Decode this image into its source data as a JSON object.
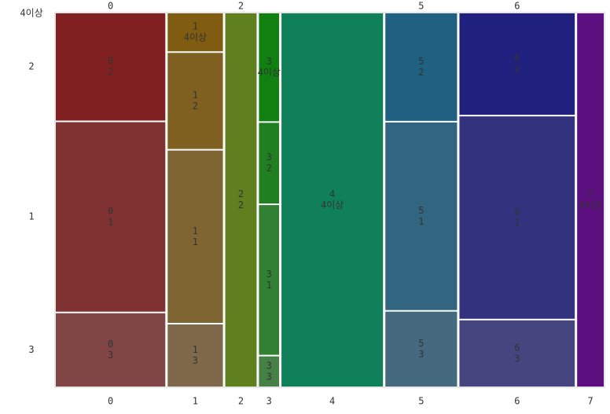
{
  "chart_data": {
    "type": "mosaic",
    "categories": [
      "0",
      "1",
      "2",
      "3",
      "4",
      "5",
      "6",
      "7"
    ],
    "series": [
      {
        "name": "3",
        "values": [
          4.08,
          1.75,
          0,
          0.31,
          0,
          2.73,
          3.88,
          0
        ],
        "colors": [
          "#804545",
          "#80694a",
          "#6a8045",
          "#458045",
          "#45806a",
          "#456a80",
          "#45457f",
          "#6a4580"
        ]
      },
      {
        "name": "1",
        "values": [
          10.55,
          4.86,
          0,
          1.54,
          0,
          6.84,
          11.87,
          0
        ],
        "colors": [
          "#803232",
          "#7f6532",
          "#658032",
          "#328032",
          "#328065",
          "#326580",
          "#32327f",
          "#653280"
        ]
      },
      {
        "name": "2",
        "values": [
          5.97,
          2.71,
          5.9,
          0.83,
          0,
          3.92,
          5.95,
          0
        ],
        "colors": [
          "#802020",
          "#806020",
          "#608020",
          "#208020",
          "#208060",
          "#206080",
          "#20207f",
          "#602080"
        ]
      },
      {
        "name": "4이상",
        "values": [
          0,
          1.07,
          0,
          1.11,
          19.1,
          0,
          0,
          5.0
        ],
        "colors": [
          "#801010",
          "#805c10",
          "#5c8010",
          "#108010",
          "#10805a",
          "#105c80",
          "#101080",
          "#5c1080"
        ]
      }
    ]
  }
}
